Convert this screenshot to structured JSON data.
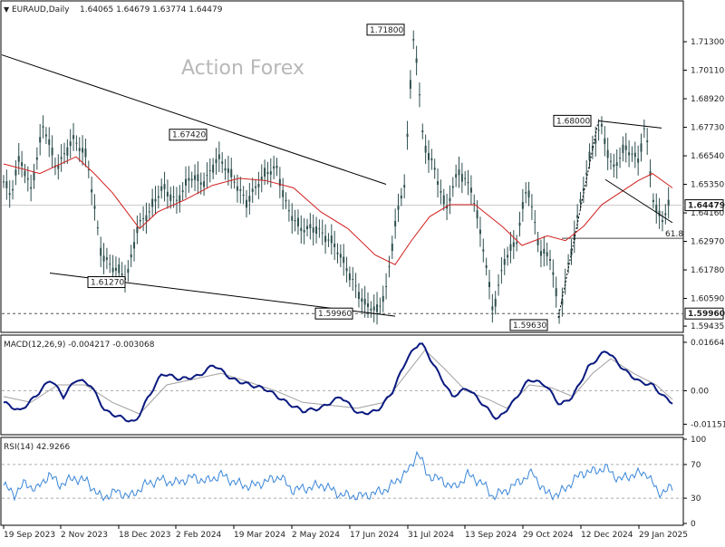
{
  "header": {
    "symbol_label": "EURAUD,Daily",
    "ohlc": "1.64065 1.64679 1.63774 1.64479",
    "watermark": "Action Forex"
  },
  "colors": {
    "candles": "#2f4f4f",
    "ma": "#d11f1f",
    "macd": "#0a1a80",
    "signal": "#a0a0a0",
    "rsi": "#3a86d9",
    "trend": "#000000"
  },
  "chart_data": [
    {
      "type": "candlestick",
      "title": "EURAUD,Daily",
      "ylim": [
        1.5925,
        1.7285
      ],
      "price_ticks": [
        "1.71300",
        "1.70110",
        "1.68920",
        "1.67730",
        "1.66540",
        "1.65350",
        "1.64160",
        "1.62970",
        "1.61780",
        "1.60590",
        "1.59435"
      ],
      "current_price": "1.64479",
      "support_label": "1.59960",
      "dates": [
        "19 Sep 2023",
        "2 Nov 2023",
        "18 Dec 2023",
        "2 Feb 2024",
        "19 Mar 2024",
        "2 May 2024",
        "17 Jun 2024",
        "31 Jul 2024",
        "13 Sep 2024",
        "29 Oct 2024",
        "12 Dec 2024",
        "29 Jan 2025"
      ],
      "close_path": [
        [
          0,
          1.658
        ],
        [
          12,
          1.648
        ],
        [
          22,
          1.665
        ],
        [
          34,
          1.652
        ],
        [
          48,
          1.678
        ],
        [
          62,
          1.66
        ],
        [
          80,
          1.673
        ],
        [
          96,
          1.664
        ],
        [
          112,
          1.625
        ],
        [
          126,
          1.618
        ],
        [
          140,
          1.614
        ],
        [
          152,
          1.637
        ],
        [
          165,
          1.642
        ],
        [
          180,
          1.652
        ],
        [
          195,
          1.647
        ],
        [
          210,
          1.656
        ],
        [
          224,
          1.654
        ],
        [
          240,
          1.665
        ],
        [
          256,
          1.656
        ],
        [
          272,
          1.647
        ],
        [
          290,
          1.656
        ],
        [
          305,
          1.661
        ],
        [
          318,
          1.643
        ],
        [
          332,
          1.634
        ],
        [
          350,
          1.636
        ],
        [
          368,
          1.628
        ],
        [
          388,
          1.615
        ],
        [
          403,
          1.603
        ],
        [
          417,
          1.6
        ],
        [
          427,
          1.612
        ],
        [
          436,
          1.638
        ],
        [
          446,
          1.652
        ],
        [
          457,
          1.718
        ],
        [
          467,
          1.672
        ],
        [
          478,
          1.662
        ],
        [
          492,
          1.642
        ],
        [
          506,
          1.66
        ],
        [
          520,
          1.652
        ],
        [
          534,
          1.625
        ],
        [
          544,
          1.601
        ],
        [
          556,
          1.622
        ],
        [
          570,
          1.629
        ],
        [
          582,
          1.654
        ],
        [
          596,
          1.626
        ],
        [
          608,
          1.622
        ],
        [
          617,
          1.598
        ],
        [
          626,
          1.618
        ],
        [
          640,
          1.645
        ],
        [
          652,
          1.666
        ],
        [
          663,
          1.679
        ],
        [
          676,
          1.66
        ],
        [
          690,
          1.668
        ],
        [
          704,
          1.664
        ],
        [
          712,
          1.679
        ],
        [
          722,
          1.643
        ],
        [
          732,
          1.638
        ],
        [
          738,
          1.645
        ]
      ],
      "ma_path": [
        [
          0,
          1.662
        ],
        [
          40,
          1.658
        ],
        [
          80,
          1.665
        ],
        [
          100,
          1.658
        ],
        [
          120,
          1.65
        ],
        [
          150,
          1.635
        ],
        [
          170,
          1.642
        ],
        [
          200,
          1.647
        ],
        [
          230,
          1.653
        ],
        [
          260,
          1.656
        ],
        [
          290,
          1.655
        ],
        [
          320,
          1.652
        ],
        [
          350,
          1.642
        ],
        [
          380,
          1.635
        ],
        [
          410,
          1.624
        ],
        [
          432,
          1.62
        ],
        [
          450,
          1.63
        ],
        [
          470,
          1.64
        ],
        [
          492,
          1.645
        ],
        [
          520,
          1.645
        ],
        [
          550,
          1.636
        ],
        [
          572,
          1.628
        ],
        [
          600,
          1.632
        ],
        [
          620,
          1.63
        ],
        [
          640,
          1.636
        ],
        [
          660,
          1.645
        ],
        [
          680,
          1.65
        ],
        [
          700,
          1.655
        ],
        [
          716,
          1.658
        ],
        [
          738,
          1.652
        ]
      ],
      "annotations": [
        {
          "label": "1.71800",
          "date_x": 457,
          "price": 1.718
        },
        {
          "label": "1.67420",
          "date_x": 233,
          "price": 1.6742
        },
        {
          "label": "1.61270",
          "date_x": 137,
          "price": 1.6127
        },
        {
          "label": "1.59960",
          "date_x": 395,
          "price": 1.5996
        },
        {
          "label": "1.68000",
          "date_x": 660,
          "price": 1.68
        },
        {
          "label": "1.59630",
          "date_x": 612,
          "price": 1.5963
        },
        {
          "label": "61.8",
          "date_x": 742,
          "price": 1.631
        }
      ]
    },
    {
      "type": "line",
      "title": "MACD(12,26,9) -0.004217 -0.003068",
      "ylim": [
        -0.0145,
        0.0185
      ],
      "ticks": [
        "0.01664",
        "0.00",
        "-0.011515"
      ],
      "macd_path": [
        [
          0,
          -0.004
        ],
        [
          18,
          -0.007
        ],
        [
          35,
          -0.002
        ],
        [
          52,
          0.004
        ],
        [
          66,
          -0.002
        ],
        [
          80,
          0.004
        ],
        [
          96,
          0.002
        ],
        [
          112,
          -0.007
        ],
        [
          128,
          -0.009
        ],
        [
          145,
          -0.011
        ],
        [
          160,
          -0.002
        ],
        [
          175,
          0.006
        ],
        [
          195,
          0.004
        ],
        [
          215,
          0.005
        ],
        [
          232,
          0.009
        ],
        [
          252,
          0.004
        ],
        [
          272,
          0.002
        ],
        [
          290,
          0.0005
        ],
        [
          312,
          -0.004
        ],
        [
          330,
          -0.007
        ],
        [
          350,
          -0.006
        ],
        [
          372,
          -0.002
        ],
        [
          392,
          -0.008
        ],
        [
          412,
          -0.007
        ],
        [
          428,
          -0.001
        ],
        [
          445,
          0.011
        ],
        [
          460,
          0.017
        ],
        [
          478,
          0.007
        ],
        [
          495,
          -0.002
        ],
        [
          512,
          0.001
        ],
        [
          530,
          -0.005
        ],
        [
          545,
          -0.01
        ],
        [
          562,
          -0.004
        ],
        [
          580,
          0.004
        ],
        [
          598,
          0.002
        ],
        [
          614,
          -0.005
        ],
        [
          628,
          -0.002
        ],
        [
          645,
          0.008
        ],
        [
          665,
          0.014
        ],
        [
          685,
          0.007
        ],
        [
          702,
          0.003
        ],
        [
          716,
          0.002
        ],
        [
          728,
          -0.002
        ],
        [
          738,
          -0.004
        ]
      ],
      "signal_path": [
        [
          0,
          -0.002
        ],
        [
          30,
          -0.004
        ],
        [
          60,
          0.002
        ],
        [
          90,
          0.002
        ],
        [
          120,
          -0.004
        ],
        [
          150,
          -0.008
        ],
        [
          180,
          0.002
        ],
        [
          210,
          0.004
        ],
        [
          240,
          0.006
        ],
        [
          270,
          0.003
        ],
        [
          300,
          0.0
        ],
        [
          330,
          -0.004
        ],
        [
          360,
          -0.005
        ],
        [
          390,
          -0.006
        ],
        [
          420,
          -0.004
        ],
        [
          445,
          0.006
        ],
        [
          465,
          0.014
        ],
        [
          485,
          0.008
        ],
        [
          510,
          0.0
        ],
        [
          535,
          -0.003
        ],
        [
          555,
          -0.006
        ],
        [
          580,
          0.002
        ],
        [
          605,
          0.001
        ],
        [
          628,
          -0.002
        ],
        [
          650,
          0.006
        ],
        [
          670,
          0.011
        ],
        [
          695,
          0.006
        ],
        [
          720,
          0.002
        ],
        [
          738,
          -0.003
        ]
      ]
    },
    {
      "type": "line",
      "title": "RSI(14) 42.9266",
      "ylim": [
        0,
        100
      ],
      "ticks": [
        "100",
        "70",
        "30",
        "0"
      ],
      "rsi_path": [
        [
          0,
          45
        ],
        [
          12,
          35
        ],
        [
          24,
          48
        ],
        [
          36,
          40
        ],
        [
          50,
          58
        ],
        [
          62,
          46
        ],
        [
          78,
          54
        ],
        [
          92,
          50
        ],
        [
          108,
          30
        ],
        [
          124,
          38
        ],
        [
          140,
          32
        ],
        [
          156,
          46
        ],
        [
          172,
          52
        ],
        [
          190,
          48
        ],
        [
          208,
          55
        ],
        [
          224,
          50
        ],
        [
          240,
          58
        ],
        [
          256,
          48
        ],
        [
          272,
          44
        ],
        [
          290,
          50
        ],
        [
          305,
          56
        ],
        [
          318,
          40
        ],
        [
          335,
          42
        ],
        [
          352,
          46
        ],
        [
          372,
          34
        ],
        [
          392,
          32
        ],
        [
          410,
          36
        ],
        [
          425,
          42
        ],
        [
          438,
          55
        ],
        [
          448,
          64
        ],
        [
          457,
          86
        ],
        [
          467,
          58
        ],
        [
          482,
          52
        ],
        [
          498,
          42
        ],
        [
          512,
          58
        ],
        [
          528,
          48
        ],
        [
          540,
          32
        ],
        [
          556,
          40
        ],
        [
          572,
          52
        ],
        [
          584,
          60
        ],
        [
          598,
          36
        ],
        [
          612,
          34
        ],
        [
          622,
          44
        ],
        [
          638,
          60
        ],
        [
          652,
          62
        ],
        [
          664,
          66
        ],
        [
          680,
          52
        ],
        [
          694,
          58
        ],
        [
          710,
          60
        ],
        [
          722,
          36
        ],
        [
          732,
          40
        ],
        [
          738,
          42
        ]
      ]
    }
  ]
}
